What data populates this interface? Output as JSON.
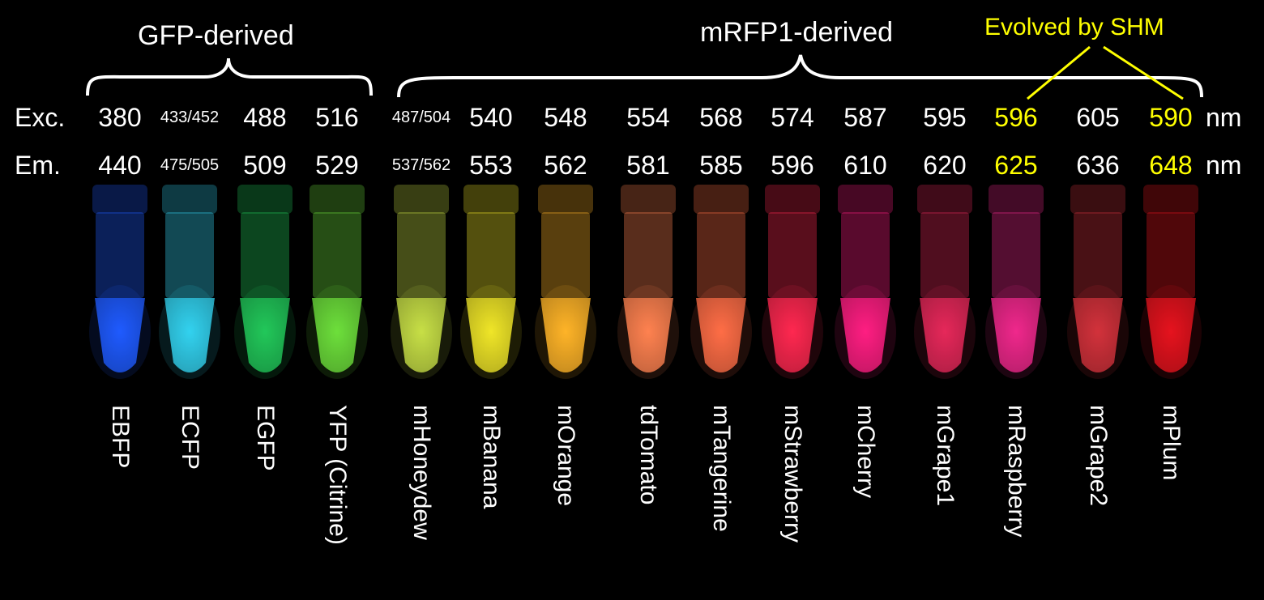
{
  "groups": {
    "gfp_label": "GFP-derived",
    "mrfp_label": "mRFP1-derived",
    "shm_label": "Evolved by SHM"
  },
  "rows": {
    "exc_label": "Exc.",
    "em_label": "Em.",
    "unit": "nm"
  },
  "colors": {
    "background": "#000000",
    "text": "#ffffff",
    "highlight": "#ffff00"
  },
  "proteins": [
    {
      "name": "EBFP",
      "exc": "380",
      "em": "440",
      "color": "#1f5bff",
      "small": false,
      "shm": false
    },
    {
      "name": "ECFP",
      "exc": "433/452",
      "em": "475/505",
      "color": "#33d2f0",
      "small": true,
      "shm": false
    },
    {
      "name": "EGFP",
      "exc": "488",
      "em": "509",
      "color": "#22c85a",
      "small": false,
      "shm": false
    },
    {
      "name": "YFP (Citrine)",
      "exc": "516",
      "em": "529",
      "color": "#6ee03c",
      "small": false,
      "shm": false
    },
    {
      "name": "mHoneydew",
      "exc": "487/504",
      "em": "537/562",
      "color": "#c8e046",
      "small": true,
      "shm": false
    },
    {
      "name": "mBanana",
      "exc": "540",
      "em": "553",
      "color": "#f0e628",
      "small": false,
      "shm": false
    },
    {
      "name": "mOrange",
      "exc": "548",
      "em": "562",
      "color": "#ffb428",
      "small": false,
      "shm": false
    },
    {
      "name": "tdTomato",
      "exc": "554",
      "em": "581",
      "color": "#ff8250",
      "small": false,
      "shm": false
    },
    {
      "name": "mTangerine",
      "exc": "568",
      "em": "585",
      "color": "#ff6e46",
      "small": false,
      "shm": false
    },
    {
      "name": "mStrawberry",
      "exc": "574",
      "em": "596",
      "color": "#ff2850",
      "small": false,
      "shm": false
    },
    {
      "name": "mCherry",
      "exc": "587",
      "em": "610",
      "color": "#ff1e82",
      "small": false,
      "shm": false
    },
    {
      "name": "mGrape1",
      "exc": "595",
      "em": "620",
      "color": "#e6285a",
      "small": false,
      "shm": false
    },
    {
      "name": "mRaspberry",
      "exc": "596",
      "em": "625",
      "color": "#f0288c",
      "small": false,
      "shm": true
    },
    {
      "name": "mGrape2",
      "exc": "605",
      "em": "636",
      "color": "#d2323c",
      "small": false,
      "shm": false
    },
    {
      "name": "mPlum",
      "exc": "590",
      "em": "648",
      "color": "#e6141e",
      "small": false,
      "shm": true
    }
  ]
}
